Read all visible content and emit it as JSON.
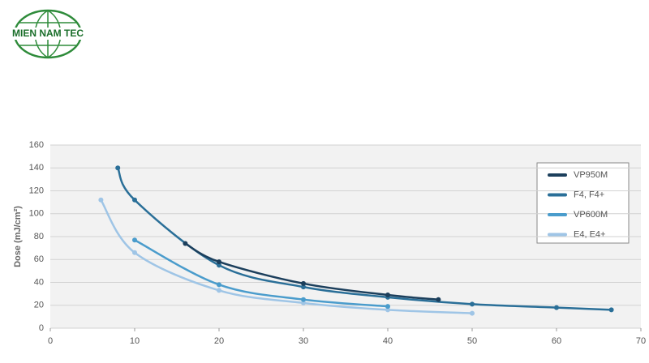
{
  "logo": {
    "text": "MIEN NAM TEC"
  },
  "chart_data": {
    "type": "line",
    "y_label": "Dose (mJ/cm²)",
    "xlim": [
      0,
      70
    ],
    "xticks": [
      0,
      10,
      20,
      30,
      40,
      50,
      60,
      70
    ],
    "ylim": [
      0,
      160
    ],
    "yticks": [
      0,
      20,
      40,
      60,
      80,
      100,
      120,
      140,
      160
    ],
    "grid": true,
    "legend": "upper right",
    "series": [
      {
        "name": "VP950M",
        "color": "#1c3f5c",
        "x": [
          16,
          20,
          30,
          40,
          46
        ],
        "values": [
          74,
          58,
          39,
          29,
          25
        ]
      },
      {
        "name": "F4, F4+",
        "color": "#2a6f98",
        "x": [
          8,
          10,
          20,
          30,
          40,
          50,
          60,
          66.5
        ],
        "values": [
          140,
          112,
          55,
          36,
          27,
          21,
          18,
          16
        ]
      },
      {
        "name": "VP600M",
        "color": "#4a9ccc",
        "x": [
          10,
          20,
          30,
          40
        ],
        "values": [
          77,
          38,
          25,
          19
        ]
      },
      {
        "name": "E4, E4+",
        "color": "#9fc5e6",
        "x": [
          6,
          10,
          20,
          30,
          40,
          50
        ],
        "values": [
          112,
          66,
          33,
          22,
          16,
          13
        ]
      }
    ]
  }
}
